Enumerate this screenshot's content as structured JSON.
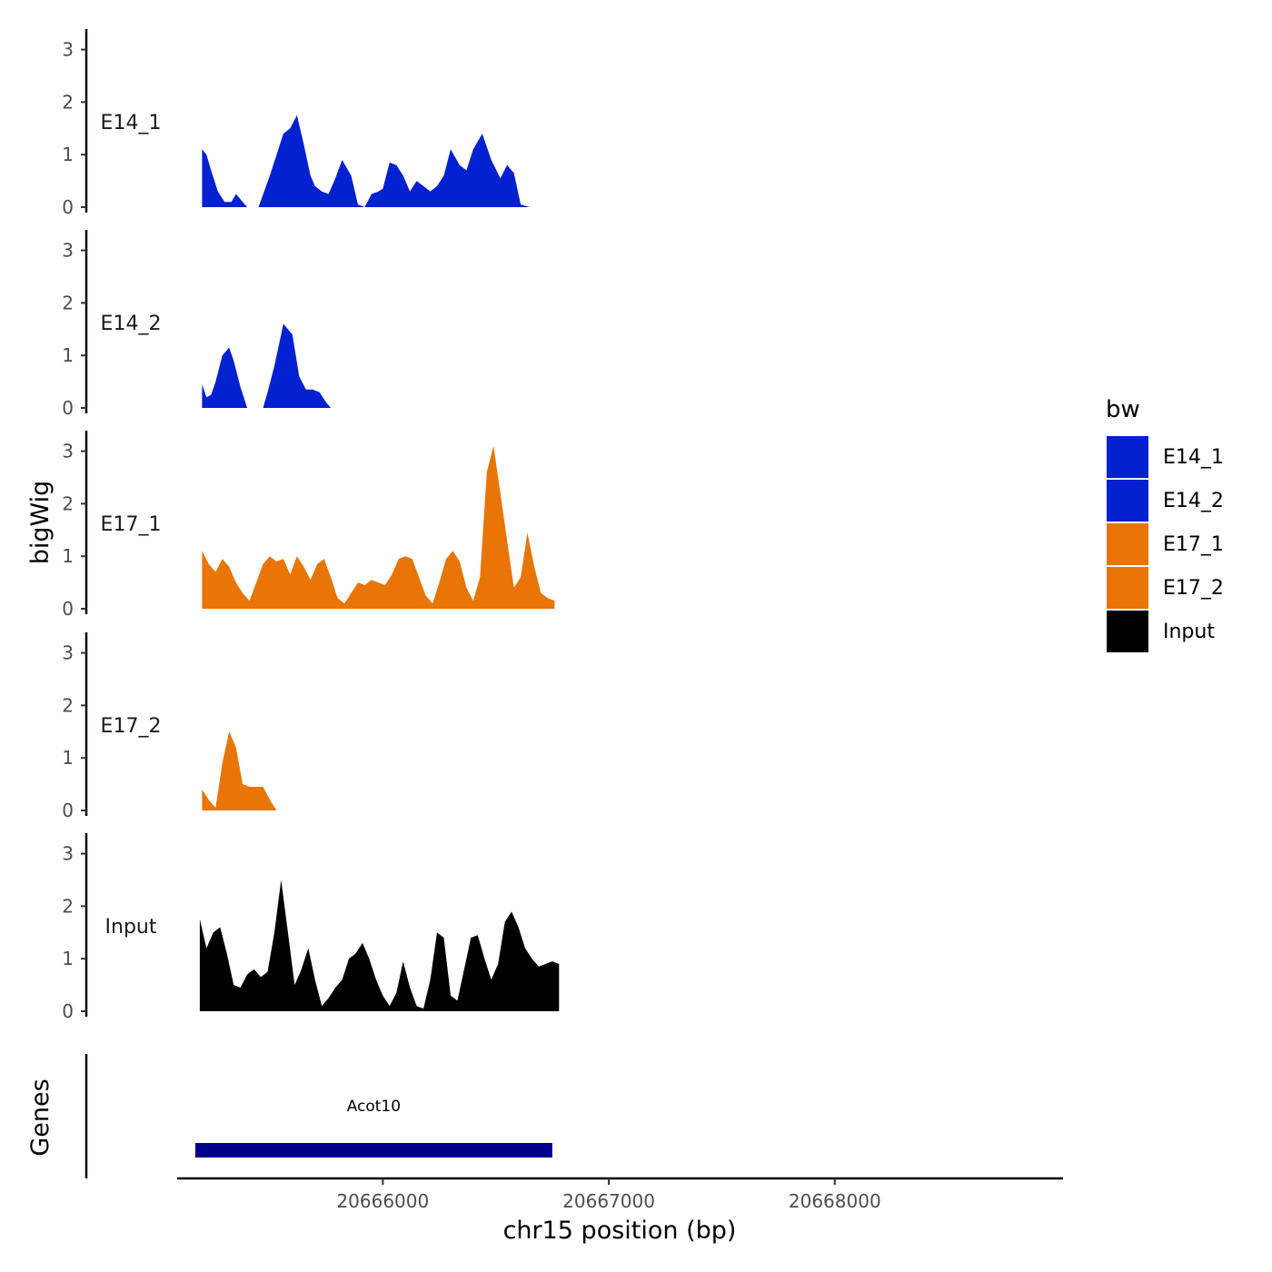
{
  "chart_data": {
    "type": "area",
    "chromosome": "chr15",
    "ylabel": "bigWig",
    "xlabel": "chr15 position (bp)",
    "gene_panel_label": "Genes",
    "xlim": [
      20665090,
      20669010
    ],
    "ylim": [
      0,
      3.2
    ],
    "y_ticks": [
      "0",
      "1",
      "2",
      "3"
    ],
    "x_ticks": [
      {
        "value": 20666000,
        "label": "20666000"
      },
      {
        "value": 20667000,
        "label": "20667000"
      },
      {
        "value": 20668000,
        "label": "20668000"
      }
    ],
    "legend": {
      "title": "bw",
      "position": "right",
      "items": [
        {
          "label": "E14_1",
          "color": "#0320d1"
        },
        {
          "label": "E14_2",
          "color": "#0320d1"
        },
        {
          "label": "E17_1",
          "color": "#e87505"
        },
        {
          "label": "E17_2",
          "color": "#e87505"
        },
        {
          "label": "Input",
          "color": "#000000"
        }
      ]
    },
    "series": [
      {
        "name": "E14_1",
        "color": "#0320d1",
        "segments": [
          {
            "x": [
              20665200,
              20665220,
              20665240,
              20665270,
              20665300,
              20665330,
              20665350,
              20665380,
              20665400,
              20665430,
              20665450
            ],
            "y": [
              1.1,
              1.0,
              0.7,
              0.3,
              0.1,
              0.1,
              0.25,
              0.1,
              0.0,
              0.0,
              0.0
            ]
          },
          {
            "x": [
              20665450,
              20665500,
              20665560,
              20665590,
              20665620,
              20665650,
              20665680,
              20665700,
              20665730,
              20665760,
              20665790,
              20665820,
              20665860,
              20665890,
              20665920,
              20665950,
              20665980,
              20666000,
              20666030,
              20666060,
              20666090,
              20666120,
              20666150,
              20666180,
              20666210,
              20666240,
              20666270,
              20666300,
              20666340,
              20666370,
              20666400,
              20666440,
              20666480,
              20666520,
              20666550,
              20666580,
              20666610,
              20666650,
              20666690
            ],
            "y": [
              0.0,
              0.6,
              1.4,
              1.5,
              1.75,
              1.2,
              0.6,
              0.4,
              0.3,
              0.25,
              0.55,
              0.9,
              0.6,
              0.05,
              0.0,
              0.25,
              0.3,
              0.35,
              0.85,
              0.8,
              0.6,
              0.3,
              0.5,
              0.4,
              0.3,
              0.4,
              0.6,
              1.1,
              0.8,
              0.7,
              1.1,
              1.4,
              0.9,
              0.55,
              0.8,
              0.65,
              0.05,
              0.0,
              0.0
            ]
          }
        ]
      },
      {
        "name": "E14_2",
        "color": "#0320d1",
        "segments": [
          {
            "x": [
              20665200,
              20665220,
              20665240,
              20665260,
              20665290,
              20665320,
              20665340,
              20665370,
              20665400,
              20665420
            ],
            "y": [
              0.45,
              0.2,
              0.25,
              0.5,
              1.0,
              1.15,
              0.9,
              0.4,
              0.0,
              0.0
            ]
          },
          {
            "x": [
              20665470,
              20665490,
              20665520,
              20665560,
              20665600,
              20665630,
              20665660,
              20665690,
              20665720,
              20665750,
              20665770
            ],
            "y": [
              0.0,
              0.3,
              0.8,
              1.6,
              1.4,
              0.6,
              0.35,
              0.35,
              0.3,
              0.1,
              0.0
            ]
          }
        ]
      },
      {
        "name": "E17_1",
        "color": "#e87505",
        "segments": [
          {
            "x": [
              20665200,
              20665230,
              20665260,
              20665290,
              20665320,
              20665350,
              20665380,
              20665410,
              20665440,
              20665470,
              20665500,
              20665530,
              20665560,
              20665590,
              20665620,
              20665650,
              20665680,
              20665710,
              20665740,
              20665770,
              20665800,
              20665830,
              20665860,
              20665890,
              20665920,
              20665950,
              20665980,
              20666010,
              20666040,
              20666070,
              20666100,
              20666130,
              20666160,
              20666190,
              20666220,
              20666250,
              20666280,
              20666310,
              20666340,
              20666370,
              20666400,
              20666430,
              20666460,
              20666490,
              20666520,
              20666550,
              20666580,
              20666610,
              20666640,
              20666670,
              20666700,
              20666730,
              20666760
            ],
            "y": [
              1.1,
              0.85,
              0.7,
              0.95,
              0.8,
              0.5,
              0.3,
              0.15,
              0.5,
              0.85,
              1.0,
              0.9,
              0.95,
              0.65,
              1.0,
              0.8,
              0.55,
              0.85,
              0.95,
              0.6,
              0.2,
              0.1,
              0.3,
              0.5,
              0.45,
              0.55,
              0.5,
              0.45,
              0.65,
              0.95,
              1.0,
              0.95,
              0.6,
              0.25,
              0.1,
              0.5,
              0.95,
              1.1,
              0.9,
              0.4,
              0.15,
              0.6,
              2.6,
              3.1,
              2.2,
              1.3,
              0.4,
              0.6,
              1.45,
              0.8,
              0.3,
              0.2,
              0.15
            ]
          }
        ]
      },
      {
        "name": "E17_2",
        "color": "#e87505",
        "segments": [
          {
            "x": [
              20665200,
              20665230,
              20665260,
              20665290,
              20665320,
              20665350,
              20665380,
              20665410,
              20665440,
              20665470,
              20665500,
              20665530
            ],
            "y": [
              0.4,
              0.2,
              0.05,
              0.9,
              1.5,
              1.2,
              0.5,
              0.45,
              0.45,
              0.45,
              0.2,
              0.0
            ]
          }
        ]
      },
      {
        "name": "Input",
        "color": "#000000",
        "segments": [
          {
            "x": [
              20665190,
              20665220,
              20665250,
              20665280,
              20665310,
              20665340,
              20665370,
              20665400,
              20665430,
              20665460,
              20665490,
              20665520,
              20665550,
              20665580,
              20665610,
              20665640,
              20665670,
              20665700,
              20665730,
              20665760,
              20665790,
              20665820,
              20665850,
              20665880,
              20665910,
              20665940,
              20665970,
              20666000,
              20666030,
              20666060,
              20666090,
              20666120,
              20666150,
              20666180,
              20666210,
              20666240,
              20666270,
              20666300,
              20666330,
              20666360,
              20666390,
              20666420,
              20666450,
              20666480,
              20666510,
              20666540,
              20666570,
              20666600,
              20666630,
              20666660,
              20666690,
              20666720,
              20666750,
              20666780
            ],
            "y": [
              1.75,
              1.2,
              1.5,
              1.6,
              1.1,
              0.5,
              0.45,
              0.7,
              0.8,
              0.65,
              0.75,
              1.5,
              2.5,
              1.5,
              0.5,
              0.8,
              1.2,
              0.6,
              0.1,
              0.25,
              0.45,
              0.6,
              1.0,
              1.1,
              1.3,
              1.0,
              0.6,
              0.3,
              0.1,
              0.35,
              0.95,
              0.45,
              0.1,
              0.05,
              0.6,
              1.5,
              1.4,
              0.3,
              0.2,
              0.8,
              1.4,
              1.45,
              1.0,
              0.6,
              0.9,
              1.7,
              1.9,
              1.6,
              1.2,
              1.0,
              0.85,
              0.9,
              0.95,
              0.9
            ]
          }
        ]
      }
    ],
    "genes": [
      {
        "name": "Acot10",
        "start": 20665170,
        "end": 20666750,
        "color": "#00008b"
      }
    ]
  }
}
